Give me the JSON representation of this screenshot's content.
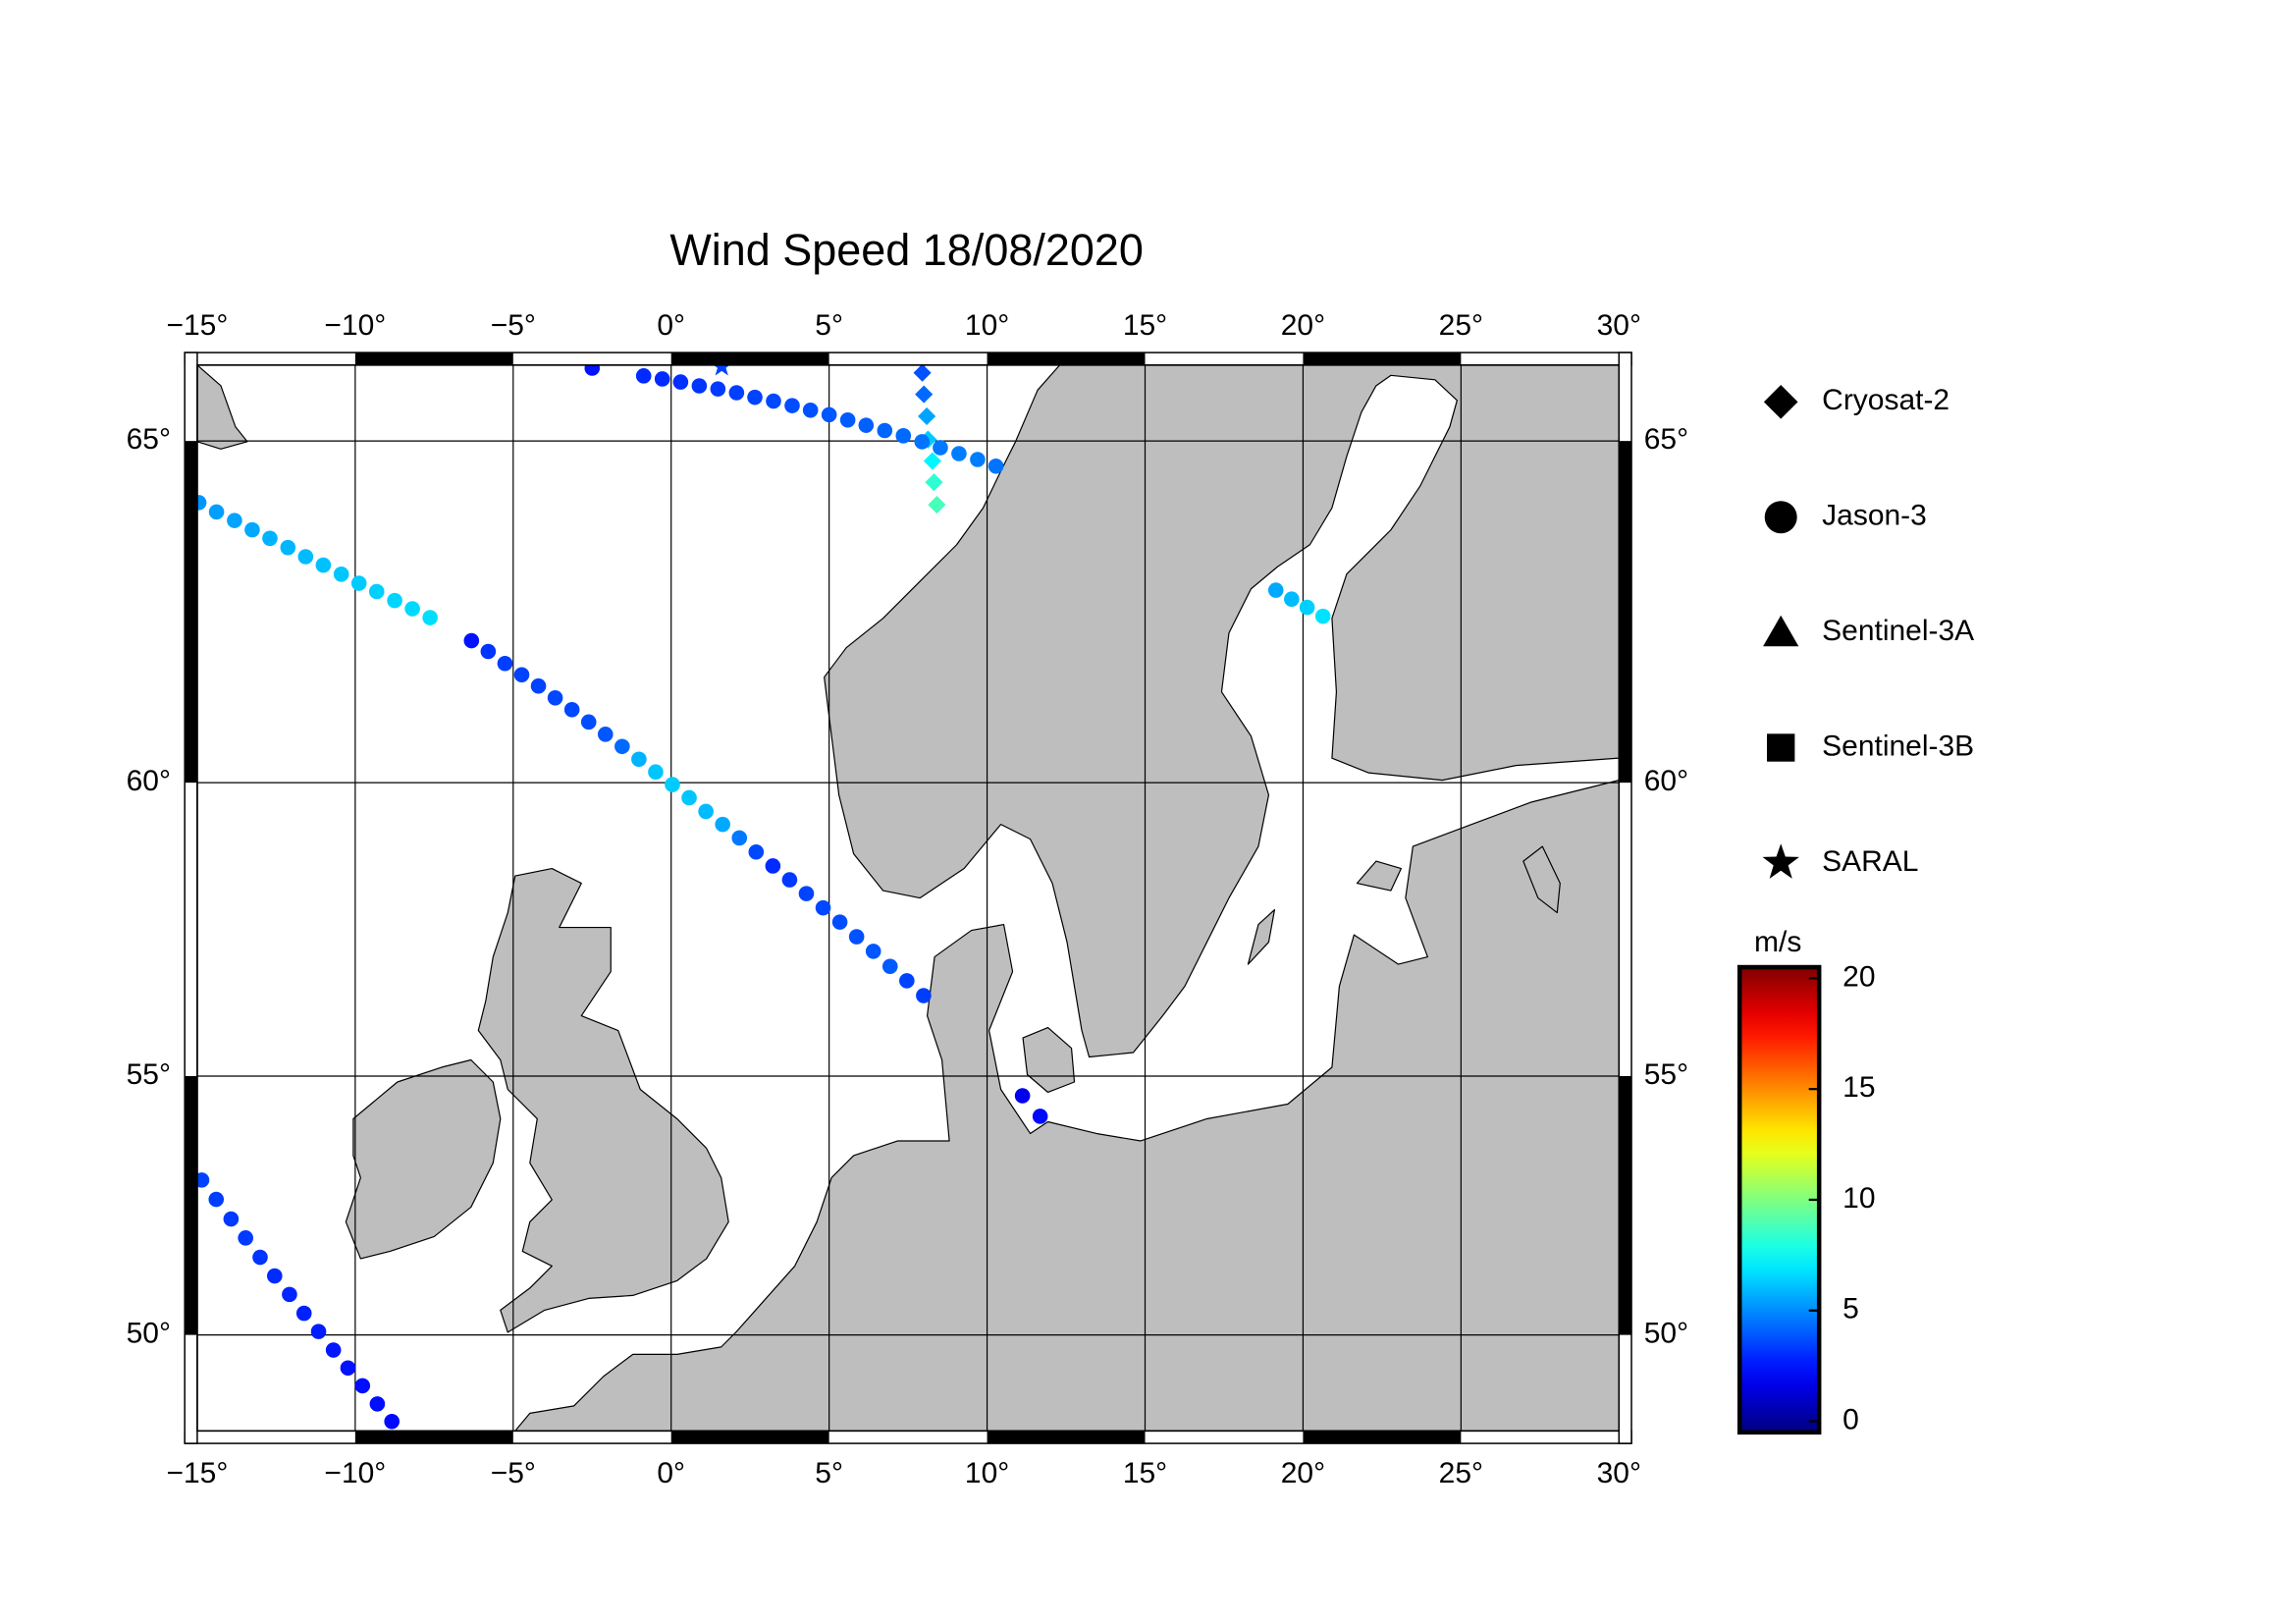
{
  "chart_data": {
    "type": "map",
    "projection": "mercator",
    "title": "Wind Speed 18/08/2020",
    "xlim": [
      -15,
      30
    ],
    "ylim": [
      48,
      66
    ],
    "xticks": [
      {
        "value": -15,
        "label": "−15°"
      },
      {
        "value": -10,
        "label": "−10°"
      },
      {
        "value": -5,
        "label": "−5°"
      },
      {
        "value": 0,
        "label": "0°"
      },
      {
        "value": 5,
        "label": "5°"
      },
      {
        "value": 10,
        "label": "10°"
      },
      {
        "value": 15,
        "label": "15°"
      },
      {
        "value": 20,
        "label": "20°"
      },
      {
        "value": 25,
        "label": "25°"
      },
      {
        "value": 30,
        "label": "30°"
      }
    ],
    "yticks": [
      {
        "value": 50,
        "label": "50°"
      },
      {
        "value": 55,
        "label": "55°"
      },
      {
        "value": 60,
        "label": "60°"
      },
      {
        "value": 65,
        "label": "65°"
      }
    ],
    "grid": true,
    "colormap": "jet",
    "clim": [
      -0.5,
      20.5
    ],
    "cticks": [
      0,
      5,
      10,
      15,
      20
    ],
    "clabel": "m/s",
    "series": [
      {
        "name": "Cryosat-2",
        "marker": "diamond",
        "lon": [
          7.95,
          8.0,
          8.09,
          8.13,
          8.27,
          8.32,
          8.41
        ],
        "lat": [
          65.9,
          65.62,
          65.33,
          65.02,
          64.73,
          64.44,
          64.13
        ],
        "values": [
          3.8,
          4.3,
          5.5,
          6.3,
          7.2,
          8.3,
          8.8
        ]
      },
      {
        "name": "Jason-3",
        "marker": "circle",
        "lon": [
          -2.5,
          -0.87,
          -0.28,
          0.3,
          0.89,
          1.48,
          2.07,
          2.65,
          3.24,
          3.83,
          4.41,
          5.0,
          5.59,
          6.17,
          6.76,
          7.35,
          7.94,
          8.52,
          9.11,
          9.7,
          10.28,
          -14.95,
          -14.39,
          -13.82,
          -13.26,
          -12.7,
          -12.13,
          -11.57,
          -11.01,
          -10.44,
          -9.88,
          -9.32,
          -8.75,
          -8.19,
          -7.63,
          -6.32,
          -5.79,
          -5.26,
          -4.73,
          -4.2,
          -3.67,
          -3.14,
          -2.61,
          -2.08,
          -1.55,
          -1.02,
          -0.49,
          0.04,
          0.57,
          1.1,
          1.63,
          2.16,
          2.69,
          3.22,
          3.75,
          4.28,
          4.81,
          5.34,
          5.87,
          6.4,
          6.93,
          7.46,
          7.99,
          -14.86,
          -14.4,
          -13.93,
          -13.47,
          -13.01,
          -12.55,
          -12.08,
          -11.62,
          -11.16,
          -10.69,
          -10.23,
          -9.77,
          -9.3,
          -8.84,
          19.14,
          19.64,
          20.13,
          20.63,
          11.12,
          11.68
        ],
        "lat": [
          65.96,
          65.86,
          65.82,
          65.78,
          65.73,
          65.69,
          65.64,
          65.58,
          65.53,
          65.47,
          65.41,
          65.35,
          65.28,
          65.21,
          65.14,
          65.07,
          64.99,
          64.91,
          64.83,
          64.75,
          64.66,
          64.16,
          64.03,
          63.91,
          63.78,
          63.66,
          63.53,
          63.4,
          63.28,
          63.15,
          63.02,
          62.9,
          62.77,
          62.65,
          62.52,
          62.18,
          62.02,
          61.84,
          61.67,
          61.5,
          61.32,
          61.14,
          60.95,
          60.76,
          60.57,
          60.37,
          60.17,
          59.97,
          59.76,
          59.54,
          59.33,
          59.11,
          58.88,
          58.65,
          58.42,
          58.19,
          57.95,
          57.71,
          57.46,
          57.21,
          56.95,
          56.7,
          56.44,
          53.06,
          52.69,
          52.31,
          51.94,
          51.56,
          51.19,
          50.82,
          50.44,
          50.07,
          49.69,
          49.32,
          48.95,
          48.57,
          48.2,
          62.92,
          62.79,
          62.67,
          62.54,
          54.64,
          54.26
        ],
        "values": [
          2.5,
          3.0,
          3.0,
          3.1,
          3.2,
          3.3,
          3.4,
          3.5,
          3.6,
          3.7,
          3.8,
          3.9,
          4.0,
          4.1,
          4.2,
          4.3,
          4.5,
          4.6,
          4.7,
          4.7,
          4.5,
          5.2,
          5.4,
          5.5,
          5.6,
          5.8,
          5.9,
          6.0,
          6.1,
          6.2,
          6.3,
          6.4,
          6.5,
          6.6,
          6.7,
          2.5,
          3.2,
          3.4,
          3.5,
          3.5,
          3.6,
          3.6,
          3.7,
          3.9,
          4.3,
          5.8,
          6.2,
          6.3,
          6.2,
          6.0,
          5.6,
          4.6,
          3.6,
          3.0,
          3.3,
          3.5,
          3.6,
          3.7,
          3.8,
          3.9,
          4.0,
          3.5,
          3.4,
          3.5,
          3.4,
          3.3,
          3.3,
          3.2,
          3.0,
          2.9,
          2.8,
          2.7,
          2.6,
          2.5,
          2.4,
          2.4,
          2.3,
          5.6,
          6.0,
          6.4,
          6.8,
          1.8,
          2.3
        ]
      },
      {
        "name": "Sentinel-3A",
        "marker": "triangle"
      },
      {
        "name": "Sentinel-3B",
        "marker": "square"
      },
      {
        "name": "SARAL",
        "marker": "star",
        "lon": [
          1.6
        ],
        "lat": [
          65.98
        ],
        "values": [
          3.5
        ]
      }
    ]
  }
}
